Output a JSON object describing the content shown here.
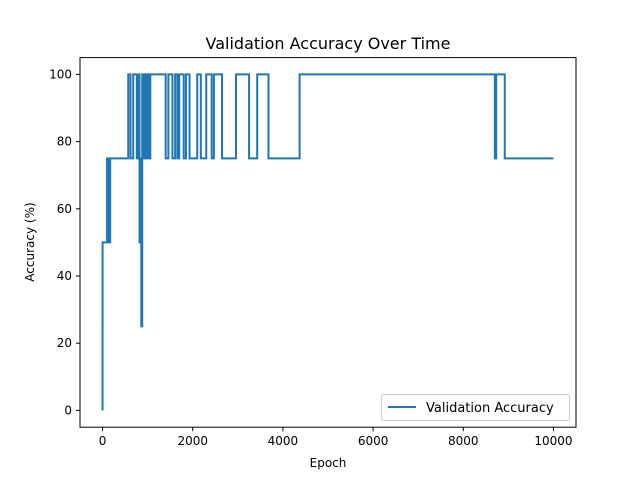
{
  "chart_data": {
    "type": "line",
    "title": "Validation Accuracy Over Time",
    "xlabel": "Epoch",
    "ylabel": "Accuracy (%)",
    "xlim": [
      -500,
      10500
    ],
    "ylim": [
      -5,
      105
    ],
    "xticks": [
      0,
      2000,
      4000,
      6000,
      8000,
      10000
    ],
    "yticks": [
      0,
      20,
      40,
      60,
      80,
      100
    ],
    "grid": false,
    "legend_position": "lower-right",
    "series": [
      {
        "name": "Validation Accuracy",
        "color": "#1f77b4",
        "x": [
          0,
          0,
          1,
          1,
          20,
          20,
          100,
          100,
          130,
          130,
          170,
          170,
          200,
          200,
          570,
          570,
          620,
          620,
          680,
          680,
          760,
          760,
          790,
          790,
          820,
          820,
          840,
          840,
          860,
          860,
          880,
          880,
          900,
          900,
          930,
          930,
          960,
          960,
          990,
          990,
          1020,
          1020,
          1060,
          1060,
          1100,
          1100,
          1400,
          1400,
          1460,
          1460,
          1550,
          1550,
          1610,
          1610,
          1660,
          1660,
          1700,
          1700,
          1800,
          1800,
          1850,
          1850,
          1930,
          1930,
          2100,
          2100,
          2180,
          2180,
          2300,
          2300,
          2420,
          2420,
          2470,
          2470,
          2650,
          2650,
          2960,
          2960,
          3250,
          3250,
          3430,
          3430,
          3680,
          3680,
          4370,
          4370,
          8700,
          8700,
          8730,
          8730,
          8920,
          8920,
          10000
        ],
        "y": [
          0,
          25,
          25,
          50,
          50,
          50,
          50,
          75,
          75,
          50,
          50,
          75,
          75,
          75,
          75,
          100,
          100,
          75,
          75,
          100,
          100,
          75,
          75,
          100,
          100,
          50,
          50,
          75,
          75,
          25,
          25,
          100,
          100,
          75,
          75,
          100,
          100,
          75,
          75,
          100,
          100,
          75,
          75,
          100,
          100,
          100,
          100,
          75,
          75,
          100,
          100,
          75,
          75,
          100,
          100,
          75,
          75,
          100,
          100,
          75,
          75,
          100,
          100,
          75,
          75,
          100,
          100,
          75,
          75,
          100,
          100,
          75,
          75,
          100,
          100,
          75,
          75,
          100,
          100,
          75,
          75,
          100,
          100,
          75,
          75,
          100,
          100,
          75,
          75,
          100,
          100,
          75,
          75
        ]
      }
    ]
  }
}
